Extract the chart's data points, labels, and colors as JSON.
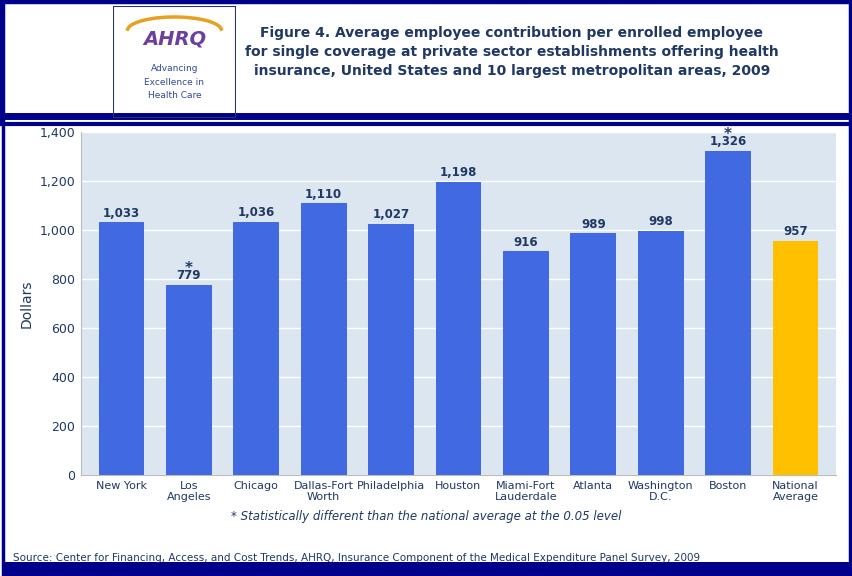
{
  "categories": [
    "New York",
    "Los\nAngeles",
    "Chicago",
    "Dallas-Fort\nWorth",
    "Philadelphia",
    "Houston",
    "Miami-Fort\nLauderdale",
    "Atlanta",
    "Washington\nD.C.",
    "Boston",
    "National\nAverage"
  ],
  "values": [
    1033,
    779,
    1036,
    1110,
    1027,
    1198,
    916,
    989,
    998,
    1326,
    957
  ],
  "bar_colors": [
    "#4169E1",
    "#4169E1",
    "#4169E1",
    "#4169E1",
    "#4169E1",
    "#4169E1",
    "#4169E1",
    "#4169E1",
    "#4169E1",
    "#4169E1",
    "#FFC000"
  ],
  "statistically_different": [
    false,
    true,
    false,
    false,
    false,
    false,
    false,
    false,
    false,
    true,
    false
  ],
  "title": "Figure 4. Average employee contribution per enrolled employee\nfor single coverage at private sector establishments offering health\ninsurance, United States and 10 largest metropolitan areas, 2009",
  "ylabel": "Dollars",
  "ylim": [
    0,
    1400
  ],
  "yticks": [
    0,
    200,
    400,
    600,
    800,
    1000,
    1200,
    1400
  ],
  "footnote": "* Statistically different than the national average at the 0.05 level",
  "source": "Source: Center for Financing, Access, and Cost Trends, AHRQ, Insurance Component of the Medical Expenditure Panel Survey, 2009",
  "chart_bg_color": "#DCE6F1",
  "header_bg_color": "#FFFFFF",
  "title_color": "#1F3864",
  "bar_label_color": "#1F3864",
  "axis_color": "#1F3864",
  "dark_blue": "#00008B",
  "figure_bg": "#FFFFFF",
  "ahrq_blue": "#2E4A96",
  "ahrq_purple": "#6B3FA0",
  "hhs_blue": "#3B8CC9",
  "logo_border": "#1F3864"
}
